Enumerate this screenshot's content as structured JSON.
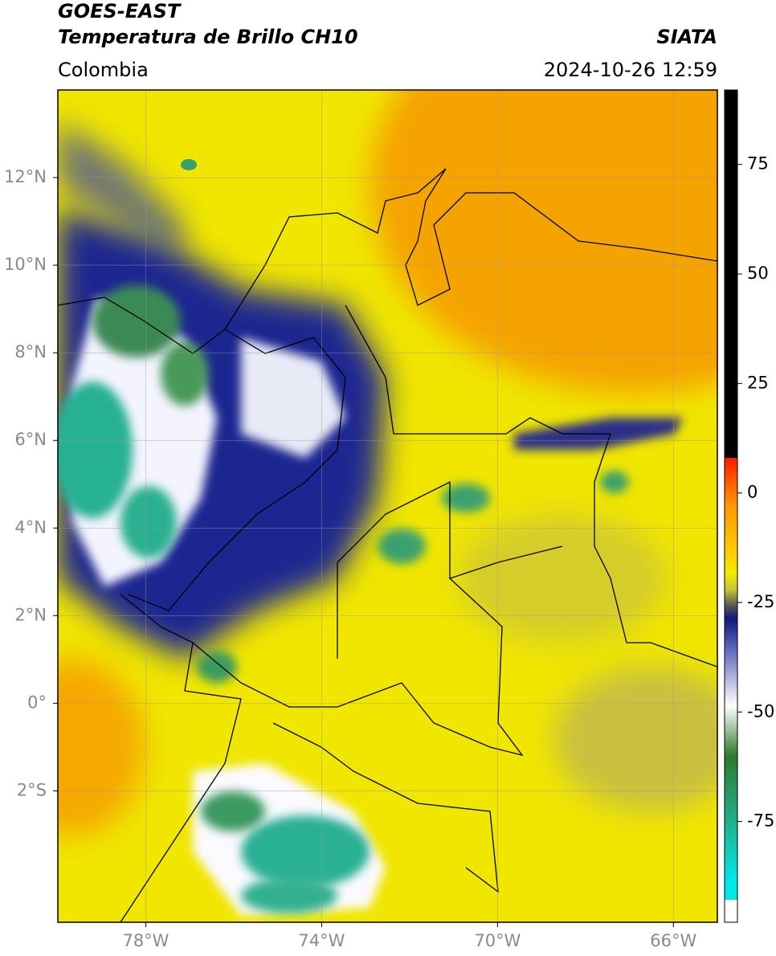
{
  "header": {
    "title": "GOES-EAST",
    "subtitle": "Temperatura de Brillo CH10",
    "region": "Colombia",
    "source": "SIATA",
    "datetime": "2024-10-26 12:59"
  },
  "map": {
    "xlim": [
      -80,
      -65
    ],
    "ylim": [
      -5,
      14
    ],
    "xticks": [
      {
        "value": -78,
        "label": "78°W"
      },
      {
        "value": -74,
        "label": "74°W"
      },
      {
        "value": -70,
        "label": "70°W"
      },
      {
        "value": -66,
        "label": "66°W"
      }
    ],
    "yticks": [
      {
        "value": 12,
        "label": "12°N"
      },
      {
        "value": 10,
        "label": "10°N"
      },
      {
        "value": 8,
        "label": "8°N"
      },
      {
        "value": 6,
        "label": "6°N"
      },
      {
        "value": 4,
        "label": "4°N"
      },
      {
        "value": 2,
        "label": "2°N"
      },
      {
        "value": 0,
        "label": "0°"
      },
      {
        "value": -2,
        "label": "2°S"
      }
    ]
  },
  "colorbar": {
    "clim": [
      -98,
      92
    ],
    "ticks": [
      -75,
      -50,
      -25,
      0,
      25,
      50,
      75
    ]
  }
}
